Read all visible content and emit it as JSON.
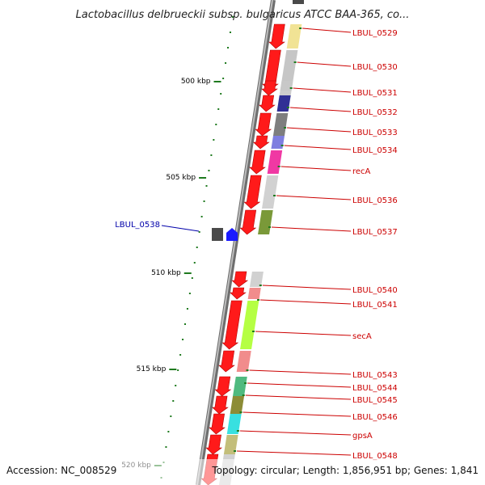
{
  "title": "Lactobacillus delbrueckii subsp. bulgaricus ATCC BAA-365, co...",
  "footer": {
    "accession": "Accession: NC_008529",
    "topology": "Topology: circular; Length: 1,856,951 bp; Genes: 1,841"
  },
  "scale_labels": [
    "500 kbp",
    "505 kbp",
    "510 kbp",
    "515 kbp",
    "520 kbp"
  ],
  "colors": {
    "forward_gene": "#ff1a1a",
    "reverse_gene": "#4a4a4a",
    "highlight_gene": "#1a1aff",
    "label_forward": "#cc0000",
    "label_highlight": "#0000aa",
    "tick_green": "#1f7a1f",
    "backbone": "#8c8c8c"
  },
  "genes": [
    {
      "id": "lbul_0529",
      "label": "LBUL_0529",
      "color": "#f0e08a"
    },
    {
      "id": "lbul_0530",
      "label": "LBUL_0530",
      "color": "#c0c0c0"
    },
    {
      "id": "lbul_0531",
      "label": "LBUL_0531",
      "color": "#c8c8c8"
    },
    {
      "id": "lbul_0532",
      "label": "LBUL_0532",
      "color": "#1a1a8a"
    },
    {
      "id": "lbul_0533",
      "label": "LBUL_0533",
      "color": "#707070"
    },
    {
      "id": "lbul_0534",
      "label": "LBUL_0534",
      "color": "#7070dd"
    },
    {
      "id": "reca",
      "label": "recA",
      "color": "#ee2299"
    },
    {
      "id": "lbul_0536",
      "label": "LBUL_0536",
      "color": "#cccccc"
    },
    {
      "id": "lbul_0537",
      "label": "LBUL_0537",
      "color": "#6b8e23"
    },
    {
      "id": "lbul_0538",
      "label": "LBUL_0538",
      "color": "#1a1aff"
    },
    {
      "id": "lbul_0540",
      "label": "LBUL_0540",
      "color": "#cccccc"
    },
    {
      "id": "lbul_0541",
      "label": "LBUL_0541",
      "color": "#f08080"
    },
    {
      "id": "seca",
      "label": "secA",
      "color": "#adff2f"
    },
    {
      "id": "lbul_0543",
      "label": "LBUL_0543",
      "color": "#f08080"
    },
    {
      "id": "lbul_0544",
      "label": "LBUL_0544",
      "color": "#3cb371"
    },
    {
      "id": "lbul_0545",
      "label": "LBUL_0545",
      "color": "#808020"
    },
    {
      "id": "lbul_0546",
      "label": "LBUL_0546",
      "color": "#22dddd"
    },
    {
      "id": "gpsa",
      "label": "gpsA",
      "color": "#bdb76b"
    },
    {
      "id": "lbul_0548",
      "label": "LBUL_0548",
      "color": "#cccccc"
    }
  ]
}
